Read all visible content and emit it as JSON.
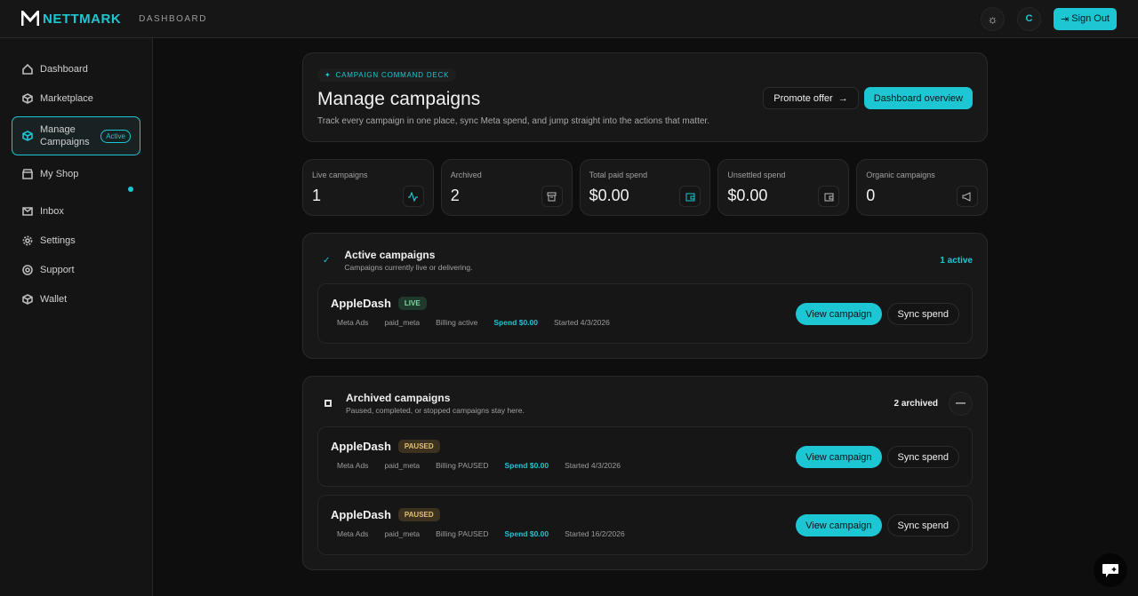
{
  "header": {
    "brand": "NETTMARK",
    "section": "DASHBOARD",
    "avatar_initial": "C",
    "sign_out": "Sign Out"
  },
  "sidebar": {
    "items": [
      {
        "label": "Dashboard",
        "icon": "home-icon"
      },
      {
        "label": "Marketplace",
        "icon": "box-icon"
      },
      {
        "label": "Manage Campaigns",
        "icon": "box-icon",
        "badge": "Active"
      },
      {
        "label": "My Shop",
        "icon": "store-icon"
      },
      {
        "label": "Inbox",
        "icon": "mail-icon"
      },
      {
        "label": "Settings",
        "icon": "gear-icon"
      },
      {
        "label": "Support",
        "icon": "lifebuoy-icon"
      },
      {
        "label": "Wallet",
        "icon": "box-icon"
      }
    ]
  },
  "hero": {
    "pill": "CAMPAIGN COMMAND DECK",
    "title": "Manage campaigns",
    "subtitle": "Track every campaign in one place, sync Meta spend, and jump straight into the actions that matter.",
    "promote": "Promote offer",
    "overview": "Dashboard overview"
  },
  "stats": [
    {
      "label": "Live campaigns",
      "value": "1"
    },
    {
      "label": "Archived",
      "value": "2"
    },
    {
      "label": "Total paid spend",
      "value": "$0.00"
    },
    {
      "label": "Unsettled spend",
      "value": "$0.00"
    },
    {
      "label": "Organic campaigns",
      "value": "0"
    }
  ],
  "active": {
    "title": "Active campaigns",
    "subtitle": "Campaigns currently live or delivering.",
    "count": "1 active",
    "rows": [
      {
        "name": "AppleDash",
        "status": "LIVE",
        "platform": "Meta Ads",
        "type": "paid_meta",
        "billing": "Billing active",
        "spend": "Spend $0.00",
        "started": "Started 4/3/2026"
      }
    ]
  },
  "archived": {
    "title": "Archived campaigns",
    "subtitle": "Paused, completed, or stopped campaigns stay here.",
    "count": "2 archived",
    "rows": [
      {
        "name": "AppleDash",
        "status": "PAUSED",
        "platform": "Meta Ads",
        "type": "paid_meta",
        "billing": "Billing PAUSED",
        "spend": "Spend $0.00",
        "started": "Started 4/3/2026"
      },
      {
        "name": "AppleDash",
        "status": "PAUSED",
        "platform": "Meta Ads",
        "type": "paid_meta",
        "billing": "Billing PAUSED",
        "spend": "Spend $0.00",
        "started": "Started 16/2/2026"
      }
    ]
  },
  "row_actions": {
    "view": "View campaign",
    "sync": "Sync spend"
  },
  "colors": {
    "accent": "#1cc7d3",
    "background": "#0e0e0e",
    "card": "#181818"
  }
}
